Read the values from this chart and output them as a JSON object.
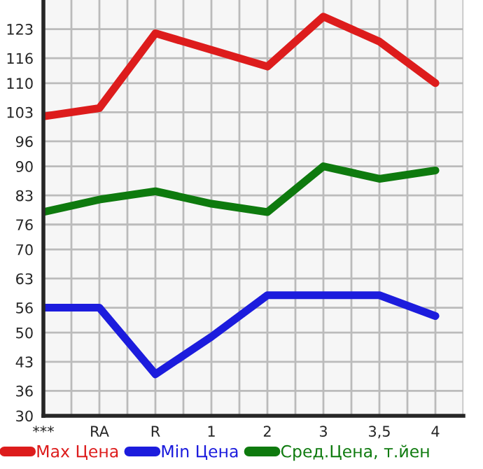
{
  "chart_data": {
    "type": "line",
    "categories": [
      "***",
      "RA",
      "R",
      "1",
      "2",
      "3",
      "3,5",
      "4"
    ],
    "series": [
      {
        "name": "Max Цена",
        "color": "#dd1c1c",
        "values": [
          102,
          104,
          122,
          118,
          114,
          126,
          120,
          110
        ]
      },
      {
        "name": "Min Цена",
        "color": "#1c1cdd",
        "values": [
          56,
          56,
          40,
          49,
          59,
          59,
          59,
          54
        ]
      },
      {
        "name": "Сред.Цена, т.йен",
        "color": "#0e7a0e",
        "values": [
          79,
          82,
          84,
          81,
          79,
          90,
          87,
          89
        ]
      }
    ],
    "ylim": [
      30,
      130
    ],
    "yticks": [
      30,
      36,
      43,
      50,
      56,
      63,
      70,
      76,
      83,
      90,
      96,
      103,
      110,
      116,
      123
    ],
    "grid": true,
    "legend": "bottom",
    "marker": "none",
    "line_style": "solid"
  }
}
